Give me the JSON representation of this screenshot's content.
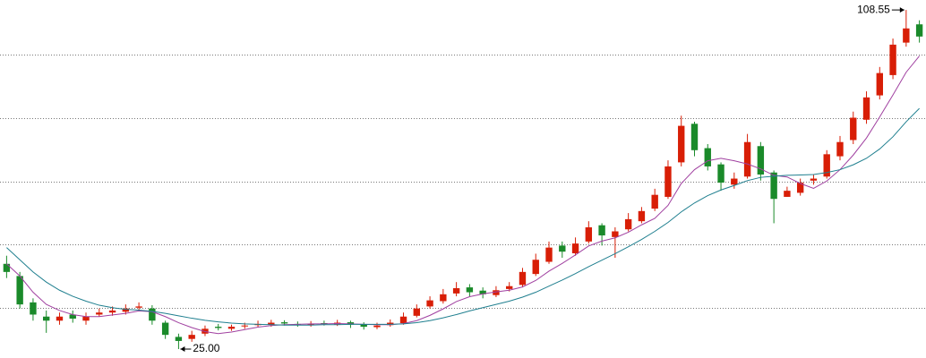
{
  "chart_data": {
    "type": "candlestick",
    "open": [
      46,
      43,
      36.5,
      33,
      32,
      33.5,
      32,
      33.5,
      34,
      34.2,
      35.2,
      35,
      31.5,
      28,
      27.5,
      28.8,
      30.5,
      30,
      30.6,
      30.9,
      31,
      31.6,
      31.2,
      30.9,
      31.4,
      31.1,
      31.6,
      31.1,
      30.4,
      30.9,
      31.4,
      33.2,
      35.5,
      36.8,
      38.7,
      40.2,
      39.4,
      38.3,
      39.8,
      40.8,
      43.5,
      46.5,
      50.5,
      48.6,
      51.5,
      55.5,
      52.6,
      54.5,
      56.5,
      59.6,
      62.5,
      71,
      80.5,
      74.5,
      70.5,
      65.5,
      67.5,
      75,
      68.5,
      62.5,
      63.5,
      66.5,
      67.5,
      72.5,
      76.5,
      81.5,
      87.5,
      92.5,
      100.5,
      105
    ],
    "high": [
      48,
      44,
      37.5,
      34.5,
      34,
      34.5,
      34,
      35,
      35.5,
      36,
      36.5,
      35.8,
      32,
      28.8,
      29.5,
      30.8,
      31.2,
      31,
      31.5,
      32,
      32.2,
      32.1,
      31.8,
      31.9,
      32,
      32.2,
      32,
      31.6,
      31.5,
      32.3,
      34,
      36,
      38,
      39.8,
      41.5,
      41,
      40.2,
      40.5,
      41.5,
      45,
      48.5,
      51.5,
      51.5,
      52.5,
      56.5,
      56,
      55,
      58.5,
      60,
      64.5,
      71.5,
      82.5,
      81,
      75.5,
      71,
      68.5,
      78,
      76,
      69,
      65,
      67,
      68,
      74,
      77.5,
      83.5,
      88.5,
      94.5,
      101.5,
      108.55,
      106
    ],
    "low": [
      42.5,
      35,
      32,
      29,
      31,
      31.5,
      31,
      33,
      33.2,
      33.5,
      34.5,
      31,
      27.5,
      25,
      26.8,
      28.2,
      29.6,
      29.5,
      30,
      30.4,
      30.5,
      30.8,
      30.5,
      30.5,
      30.8,
      30.7,
      30.2,
      29.8,
      29.9,
      30.5,
      31,
      32.8,
      35,
      36.2,
      38,
      38,
      37.5,
      37.8,
      39.2,
      40.2,
      43,
      46,
      47.5,
      48,
      51,
      50.5,
      47.5,
      54,
      56,
      59,
      62,
      70,
      72.5,
      69,
      64,
      64.5,
      67,
      66.5,
      56,
      62.5,
      62.8,
      65.5,
      67,
      71.5,
      75.5,
      80.5,
      86.5,
      91.5,
      99.5,
      100.5
    ],
    "close": [
      44,
      36,
      33.5,
      32,
      33,
      32.5,
      33,
      34,
      34.5,
      35,
      35.5,
      32,
      28.5,
      27,
      28.5,
      30,
      30.2,
      30.5,
      30.8,
      31.2,
      31.5,
      31.3,
      31,
      31.2,
      31.3,
      31.5,
      31,
      30.5,
      30.8,
      31.5,
      33,
      35,
      37,
      38.5,
      40,
      39,
      38.5,
      39.5,
      40.5,
      44,
      47,
      50,
      49,
      51,
      55,
      53,
      54,
      57,
      59,
      63,
      70,
      80,
      74,
      70,
      66,
      67,
      76,
      68,
      62,
      64,
      66,
      67,
      73,
      76,
      82,
      87,
      93,
      100,
      104,
      102
    ],
    "up_color": "#d81e06",
    "down_color": "#1a8a2a",
    "moving_averages": [
      {
        "color": "#a040a0",
        "values": [
          46,
          43,
          39,
          36,
          34.5,
          33.5,
          33,
          33,
          33.4,
          33.8,
          34.4,
          34.2,
          33,
          31.5,
          30.3,
          29.3,
          28.8,
          29.2,
          29.8,
          30.4,
          30.8,
          31,
          31.1,
          31.2,
          31.2,
          31.3,
          31.2,
          31.1,
          31,
          31,
          31.3,
          32,
          33.3,
          34.9,
          36.7,
          37.9,
          38.6,
          39.1,
          39.5,
          40.3,
          41.9,
          44.2,
          46.1,
          48.2,
          50.4,
          51.6,
          52.4,
          53.8,
          55.6,
          57.2,
          60.4,
          65.8,
          69.2,
          71.4,
          72,
          71.4,
          70.6,
          69.4,
          67.8,
          67.4,
          65.8,
          64.6,
          66.4,
          69.2,
          72.8,
          77,
          82.2,
          87.6,
          93.2,
          97.2
        ]
      },
      {
        "color": "#1f7f8f",
        "values": [
          50,
          47,
          44,
          41.5,
          39.5,
          38,
          36.8,
          35.8,
          35.2,
          34.8,
          34.6,
          34.3,
          33.8,
          33.2,
          32.6,
          32.1,
          31.7,
          31.4,
          31.2,
          31.1,
          31,
          30.9,
          30.9,
          30.9,
          31,
          31,
          31.1,
          31.1,
          31.1,
          31.1,
          31.2,
          31.5,
          32,
          32.7,
          33.5,
          34.4,
          35.2,
          36,
          36.8,
          37.8,
          39,
          40.5,
          42,
          43.6,
          45.3,
          46.9,
          48.5,
          50.2,
          52,
          54,
          56.2,
          58.8,
          61,
          62.8,
          64.2,
          65.3,
          66.5,
          67.3,
          67.6,
          67.8,
          67.9,
          68,
          68.5,
          69.2,
          70.4,
          72,
          74.3,
          77.3,
          81,
          84.3
        ]
      }
    ],
    "ylim": [
      22.8,
      111
    ],
    "yticks": [
      35.1,
      50.8,
      66.2,
      81.9,
      97.5
    ],
    "grid": true,
    "annotations": [
      {
        "value": 108.55,
        "label": "108.55"
      },
      {
        "value": 25,
        "label": "25.00"
      }
    ]
  }
}
